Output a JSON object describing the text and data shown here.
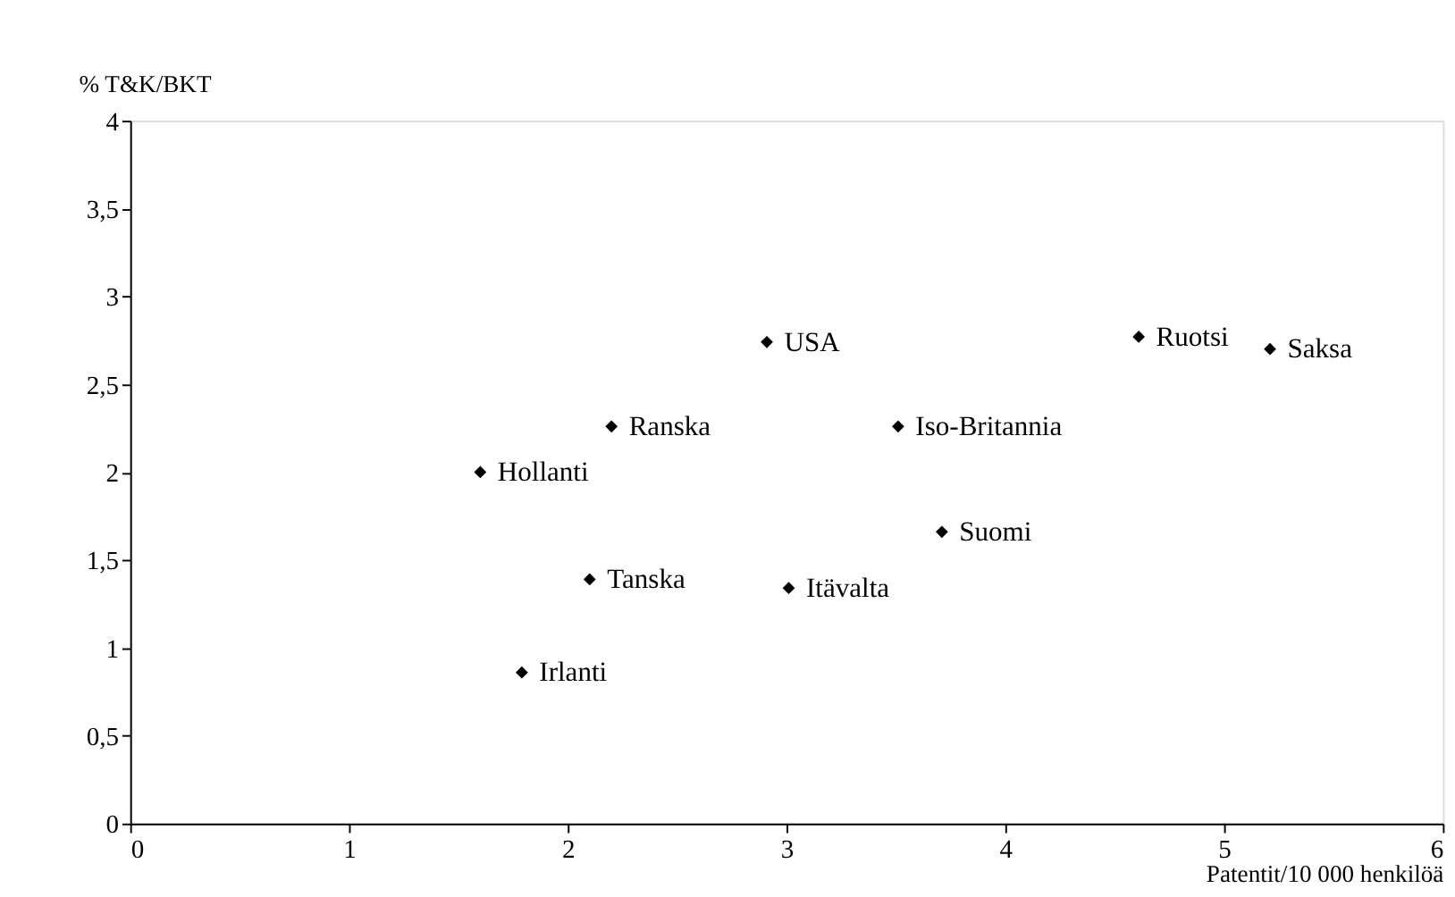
{
  "chart_data": {
    "type": "scatter",
    "xlabel": "Patentit/10 000 henkilöä",
    "ylabel": "%   T&K/BKT",
    "marker": "diamond",
    "grid": false,
    "xlim": [
      0,
      6
    ],
    "xticks": [
      0,
      1,
      2,
      3,
      4,
      5,
      6
    ],
    "ylim": [
      0,
      4
    ],
    "yticks": [
      0,
      {
        "value": 0.5,
        "label": "0,5"
      },
      1,
      {
        "value": 1.5,
        "label": "1,5"
      },
      2,
      {
        "value": 2.5,
        "label": "2,5"
      },
      3,
      {
        "value": 3.5,
        "label": "3,5"
      },
      4
    ],
    "series": [
      {
        "name": "Hollanti",
        "color": "#000000",
        "x": [
          1.6
        ],
        "values": [
          2.0
        ]
      },
      {
        "name": "Ranska",
        "color": "#000000",
        "x": [
          2.2
        ],
        "values": [
          2.26
        ]
      },
      {
        "name": "Tanska",
        "color": "#000000",
        "x": [
          2.1
        ],
        "values": [
          1.39
        ]
      },
      {
        "name": "Irlanti",
        "color": "#000000",
        "x": [
          1.79
        ],
        "values": [
          0.86
        ]
      },
      {
        "name": "USA",
        "color": "#000000",
        "x": [
          2.91
        ],
        "values": [
          2.74
        ]
      },
      {
        "name": "Iso-Britannia",
        "color": "#000000",
        "x": [
          3.51
        ],
        "values": [
          2.26
        ]
      },
      {
        "name": "Suomi",
        "color": "#000000",
        "x": [
          3.71
        ],
        "values": [
          1.66
        ]
      },
      {
        "name": "Itävalta",
        "color": "#000000",
        "x": [
          3.01
        ],
        "values": [
          1.34
        ]
      },
      {
        "name": "Ruotsi",
        "color": "#000000",
        "x": [
          4.61
        ],
        "values": [
          2.77
        ]
      },
      {
        "name": "Saksa",
        "color": "#000000",
        "x": [
          5.21
        ],
        "values": [
          2.7
        ]
      }
    ]
  }
}
